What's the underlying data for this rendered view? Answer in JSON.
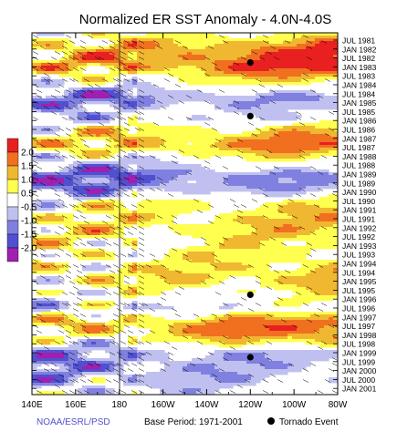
{
  "chart_data": {
    "type": "heatmap",
    "title": "Normalized ER SST Anomaly - 4.0N-4.0S",
    "x_tick_labels": [
      "140E",
      "160E",
      "180",
      "160W",
      "140W",
      "120W",
      "100W",
      "80W"
    ],
    "x_range_deg_east": [
      140,
      280
    ],
    "y_tick_labels": [
      "JUL 1981",
      "JAN 1982",
      "JUL 1982",
      "JAN 1983",
      "JUL 1983",
      "JAN 1984",
      "JUL 1984",
      "JAN 1985",
      "JUL 1985",
      "JAN 1986",
      "JUL 1986",
      "JAN 1987",
      "JUL 1987",
      "JAN 1988",
      "JUL 1988",
      "JAN 1989",
      "JUL 1989",
      "JAN 1990",
      "JUL 1990",
      "JAN 1991",
      "JUL 1991",
      "JAN 1992",
      "JUL 1992",
      "JAN 1993",
      "JUL 1993",
      "JAN 1994",
      "JUL 1994",
      "JAN 1995",
      "JUL 1995",
      "JAN 1996",
      "JUL 1996",
      "JAN 1997",
      "JUL 1997",
      "JAN 1998",
      "JUL 1998",
      "JAN 1999",
      "JUL 1999",
      "JAN 2000",
      "JUL 2000",
      "JAN 2001"
    ],
    "y_direction": "time increases downward",
    "colorbar": {
      "labels": [
        "2.0",
        "1.5",
        "1.0",
        "0.5",
        "-0.5",
        "-1.0",
        "-1.5",
        "-2.0"
      ],
      "colors": [
        "#a020b0",
        "#5050d0",
        "#8080e0",
        "#c0c0f0",
        "#ffffff",
        "#ffff50",
        "#f0b830",
        "#f07020",
        "#e82020"
      ],
      "note": "color scale runs from negative (purple/blue, bottom) to positive (red, top); near-zero is white"
    },
    "anomaly_bands": [
      {
        "start": "JAN 1982",
        "end": "JUL 1983",
        "value": 2.0,
        "max_region": "140W-80W"
      },
      {
        "start": "JAN 1984",
        "end": "JUL 1984",
        "value": -1.0
      },
      {
        "start": "JAN 1985",
        "end": "JUL 1985",
        "value": -0.5
      },
      {
        "start": "JAN 1987",
        "end": "JAN 1988",
        "value": 1.5
      },
      {
        "start": "JUL 1988",
        "end": "JUL 1989",
        "value": -1.5
      },
      {
        "start": "JAN 1990",
        "end": "JAN 1990",
        "value": 0.0
      },
      {
        "start": "JAN 1991",
        "end": "JUL 1992",
        "value": 1.0
      },
      {
        "start": "JAN 1994",
        "end": "JUL 1995",
        "value": 1.0
      },
      {
        "start": "JAN 1996",
        "end": "JUL 1996",
        "value": -0.5
      },
      {
        "start": "JUL 1997",
        "end": "JAN 1998",
        "value": 2.0,
        "max_region": "180-80W"
      },
      {
        "start": "JUL 1998",
        "end": "JUL 2000",
        "value": -1.0
      }
    ],
    "tornado_events": [
      {
        "lon_label": "120W",
        "date": "JUL 1982"
      },
      {
        "lon_label": "120W",
        "date": "JUL 1985"
      },
      {
        "lon_label": "120W",
        "date": "JUL 1995"
      },
      {
        "lon_label": "120W",
        "date": "JAN 1999"
      }
    ],
    "legend": {
      "marker_label": "Tornado Event",
      "placement": "bottom-right"
    }
  },
  "footer": {
    "source": "NOAA/ESRL/PSD",
    "base_period": "Base Period: 1971-2001",
    "tornado_label": "Tornado Event"
  },
  "colors": {
    "source_text": "#5050d0",
    "red": "#e82020",
    "orange": "#f07020",
    "gold": "#f0b830",
    "yellow": "#ffff50",
    "light_blue": "#c0c0f0",
    "mid_blue": "#8080e0",
    "blue": "#5050d0",
    "purple": "#a020b0"
  }
}
